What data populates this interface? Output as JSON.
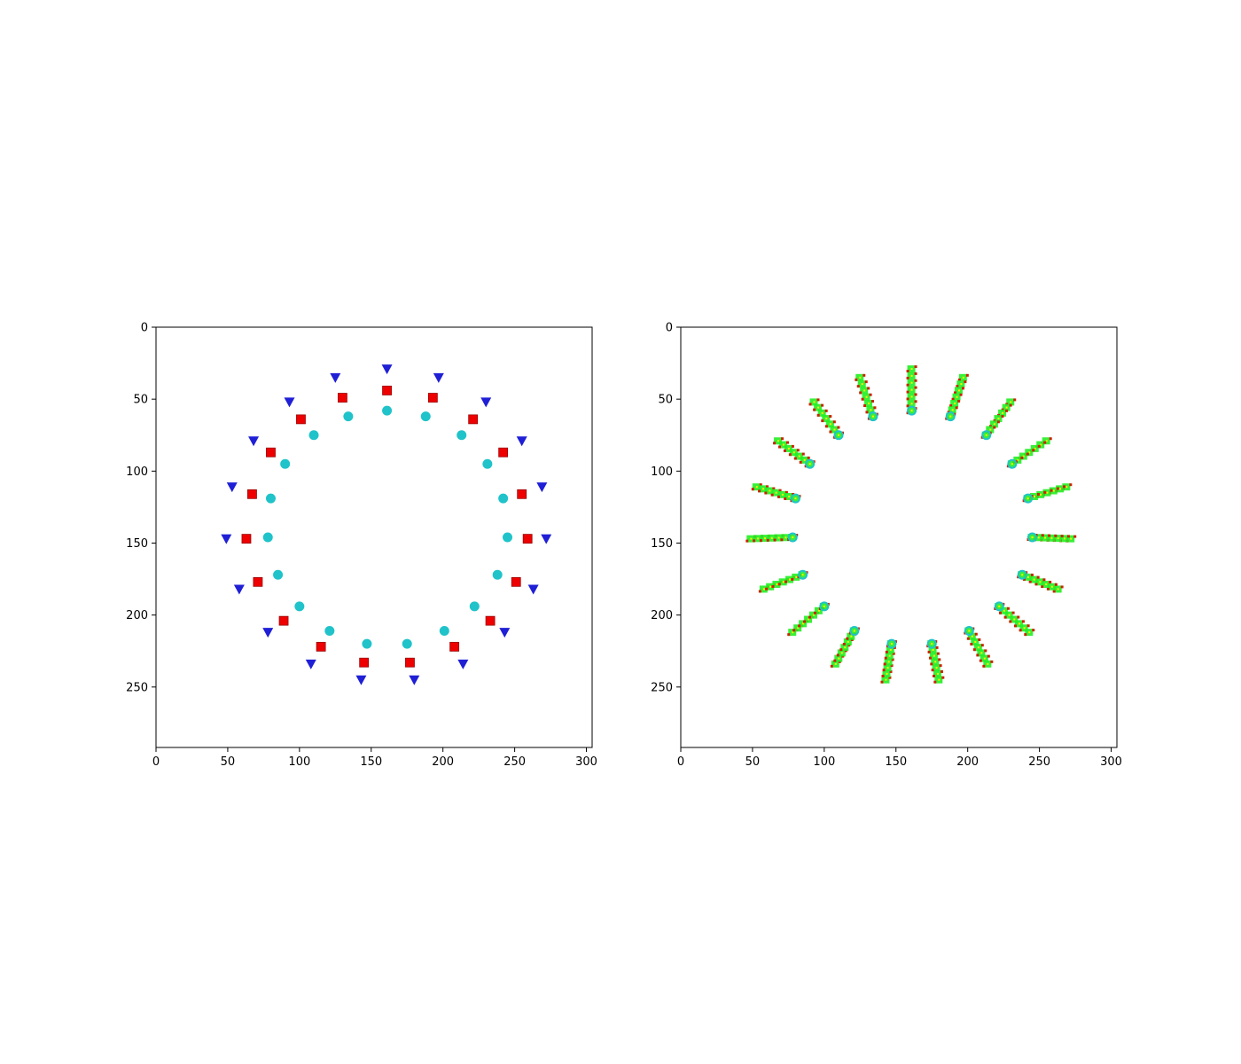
{
  "figure": {
    "background": "#ffffff",
    "axis_color": "#000000"
  },
  "chart_data": [
    {
      "type": "scatter",
      "panel": "left",
      "xlim": [
        0,
        304
      ],
      "ylim": [
        0,
        292
      ],
      "y_inverted": true,
      "grid": false,
      "x_ticks": [
        0,
        50,
        100,
        150,
        200,
        250,
        300
      ],
      "y_ticks": [
        0,
        50,
        100,
        150,
        200,
        250
      ],
      "title": "",
      "xlabel": "",
      "ylabel": "",
      "series": [
        {
          "marker": "triangle-down",
          "color": "#1f1fd6",
          "points": [
            [
              161,
              29
            ],
            [
              197,
              35
            ],
            [
              230,
              52
            ],
            [
              255,
              79
            ],
            [
              269,
              111
            ],
            [
              272,
              147
            ],
            [
              263,
              182
            ],
            [
              243,
              212
            ],
            [
              214,
              234
            ],
            [
              180,
              245
            ],
            [
              143,
              245
            ],
            [
              108,
              234
            ],
            [
              78,
              212
            ],
            [
              58,
              182
            ],
            [
              49,
              147
            ],
            [
              53,
              111
            ],
            [
              68,
              79
            ],
            [
              93,
              52
            ],
            [
              125,
              35
            ]
          ]
        },
        {
          "marker": "square",
          "color": "#ee0000",
          "points": [
            [
              161,
              44
            ],
            [
              193,
              49
            ],
            [
              221,
              64
            ],
            [
              242,
              87
            ],
            [
              255,
              116
            ],
            [
              259,
              147
            ],
            [
              251,
              177
            ],
            [
              233,
              204
            ],
            [
              208,
              222
            ],
            [
              177,
              233
            ],
            [
              145,
              233
            ],
            [
              115,
              222
            ],
            [
              89,
              204
            ],
            [
              71,
              177
            ],
            [
              63,
              147
            ],
            [
              67,
              116
            ],
            [
              80,
              87
            ],
            [
              101,
              64
            ],
            [
              130,
              49
            ]
          ]
        },
        {
          "marker": "circle",
          "color": "#1fc3c9",
          "points": [
            [
              161,
              58
            ],
            [
              188,
              62
            ],
            [
              213,
              75
            ],
            [
              231,
              95
            ],
            [
              242,
              119
            ],
            [
              245,
              146
            ],
            [
              238,
              172
            ],
            [
              222,
              194
            ],
            [
              201,
              211
            ],
            [
              175,
              220
            ],
            [
              147,
              220
            ],
            [
              121,
              211
            ],
            [
              100,
              194
            ],
            [
              85,
              172
            ],
            [
              78,
              146
            ],
            [
              80,
              119
            ],
            [
              90,
              95
            ],
            [
              110,
              75
            ],
            [
              134,
              62
            ]
          ]
        }
      ]
    },
    {
      "type": "scatter",
      "panel": "right",
      "xlim": [
        0,
        304
      ],
      "ylim": [
        0,
        292
      ],
      "y_inverted": true,
      "grid": false,
      "x_ticks": [
        0,
        50,
        100,
        150,
        200,
        250,
        300
      ],
      "y_ticks": [
        0,
        50,
        100,
        150,
        200,
        250
      ],
      "title": "",
      "xlabel": "",
      "ylabel": "",
      "cluster_colors": [
        "#22ee22",
        "#cc2200",
        "#1fc3c9"
      ],
      "clusters": [
        [
          161,
          29
        ],
        [
          197,
          35
        ],
        [
          230,
          52
        ],
        [
          255,
          79
        ],
        [
          269,
          111
        ],
        [
          272,
          147
        ],
        [
          263,
          182
        ],
        [
          243,
          212
        ],
        [
          214,
          234
        ],
        [
          180,
          245
        ],
        [
          143,
          245
        ],
        [
          108,
          234
        ],
        [
          78,
          212
        ],
        [
          58,
          182
        ],
        [
          49,
          147
        ],
        [
          53,
          111
        ],
        [
          68,
          79
        ],
        [
          93,
          52
        ],
        [
          125,
          35
        ]
      ],
      "centers": [
        [
          161,
          58
        ],
        [
          188,
          62
        ],
        [
          213,
          75
        ],
        [
          231,
          95
        ],
        [
          242,
          119
        ],
        [
          245,
          146
        ],
        [
          238,
          172
        ],
        [
          222,
          194
        ],
        [
          201,
          211
        ],
        [
          175,
          220
        ],
        [
          147,
          220
        ],
        [
          121,
          211
        ],
        [
          100,
          194
        ],
        [
          85,
          172
        ],
        [
          78,
          146
        ],
        [
          80,
          119
        ],
        [
          90,
          95
        ],
        [
          110,
          75
        ],
        [
          134,
          62
        ]
      ]
    }
  ]
}
